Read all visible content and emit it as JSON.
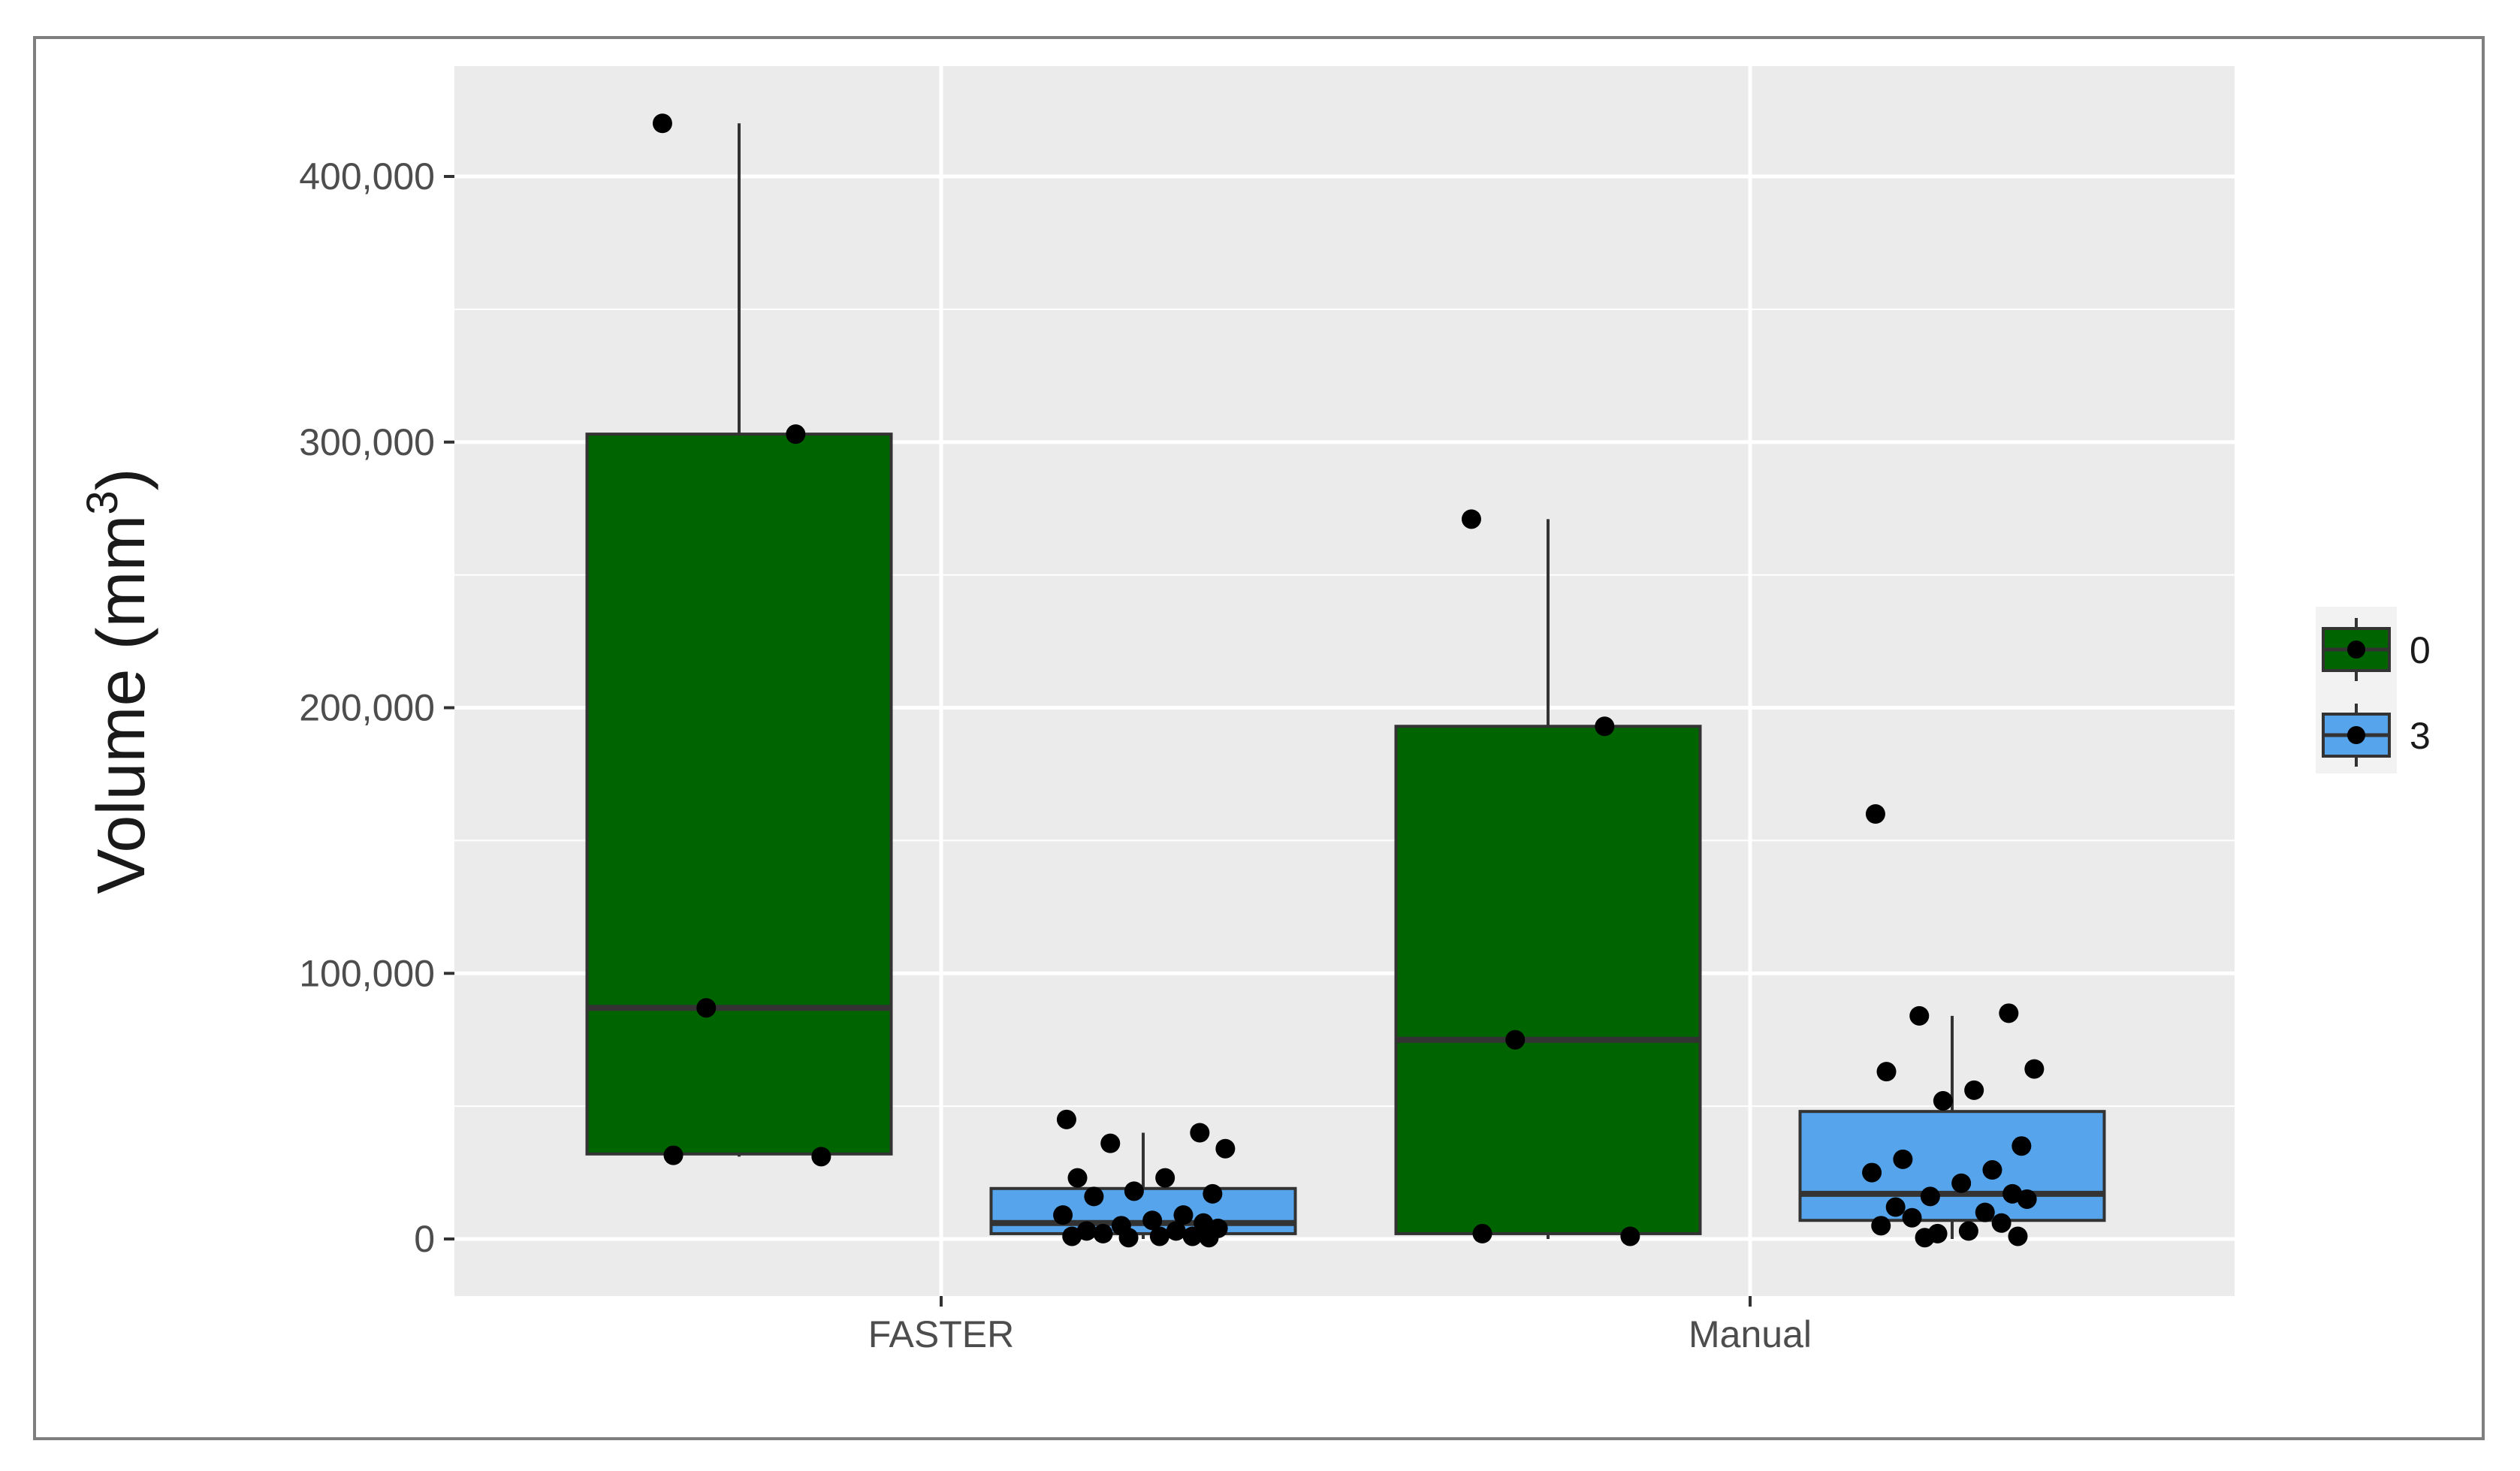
{
  "chart_data": {
    "type": "boxplot",
    "title": "",
    "xlabel": "",
    "ylabel": "Volume (mm³)",
    "ylabel_main": "Volume  (mm",
    "ylabel_sup": "3",
    "ylabel_close": ")",
    "ylim": [
      -20000,
      445000
    ],
    "yticks": [
      0,
      100000,
      200000,
      300000,
      400000
    ],
    "ytick_labels": [
      "0",
      "100,000",
      "200,000",
      "300,000",
      "400,000"
    ],
    "categories": [
      "FASTER",
      "Manual"
    ],
    "grid": true,
    "legend_position": "right",
    "series": [
      {
        "name": "0",
        "color": "#006400",
        "boxes": [
          {
            "category": "FASTER",
            "min": 31000,
            "q1": 32000,
            "median": 87000,
            "q3": 303000,
            "max": 420000,
            "points": [
              420000,
              303000,
              87000,
              31000,
              31500
            ]
          },
          {
            "category": "Manual",
            "min": 0,
            "q1": 2000,
            "median": 75000,
            "q3": 193000,
            "max": 271000,
            "points": [
              271000,
              193000,
              75000,
              1000,
              2000
            ]
          }
        ]
      },
      {
        "name": "3",
        "color": "#56a5ec",
        "boxes": [
          {
            "category": "FASTER",
            "min": 0,
            "q1": 2000,
            "median": 6000,
            "q3": 19000,
            "max": 40000,
            "points": [
              45000,
              40000,
              36000,
              34000,
              23000,
              23000,
              18000,
              17000,
              16000,
              9000,
              9000,
              7000,
              6000,
              5000,
              4000,
              3000,
              3000,
              2000,
              1000,
              1000,
              1000,
              500,
              500
            ]
          },
          {
            "category": "Manual",
            "min": 0,
            "q1": 7000,
            "median": 17000,
            "q3": 48000,
            "max": 84000,
            "points": [
              160000,
              85000,
              84000,
              64000,
              63000,
              56000,
              52000,
              35000,
              30000,
              26000,
              25000,
              21000,
              17000,
              16000,
              15000,
              12000,
              10000,
              8000,
              6000,
              5000,
              3000,
              2000,
              1000,
              500
            ]
          }
        ]
      }
    ]
  }
}
